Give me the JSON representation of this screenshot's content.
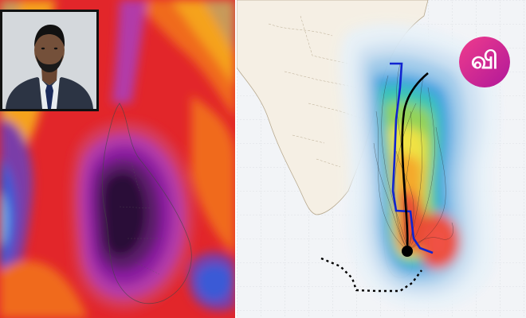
{
  "logo": {
    "text": "வி",
    "gradient_from": "#f03c8c",
    "gradient_to": "#b0189a"
  },
  "left_map": {
    "description_icon": "heatmap-rainfall-map",
    "palette": [
      "#2a0e38",
      "#5b1a6b",
      "#8b1fa0",
      "#b23aa8",
      "#d63a5a",
      "#e2262a",
      "#f06a1c",
      "#f5a21a",
      "#c79a5a",
      "#7a3ea8",
      "#3a5ad6",
      "#7ab8f0"
    ]
  },
  "right_map": {
    "description_icon": "cyclone-track-probability-map",
    "track_colors": {
      "observed": "#1024d0",
      "forecast": "#000000",
      "ensemble": "#222222"
    },
    "probability_palette": [
      "#e7f1f8",
      "#cfe2f3",
      "#9cc9ea",
      "#3aa0e0",
      "#2ec4b0",
      "#8fd14f",
      "#f0e23a",
      "#f5a623",
      "#e8452c",
      "#f04a3a"
    ]
  },
  "inset_photo": {
    "description_icon": "portrait-photo"
  }
}
